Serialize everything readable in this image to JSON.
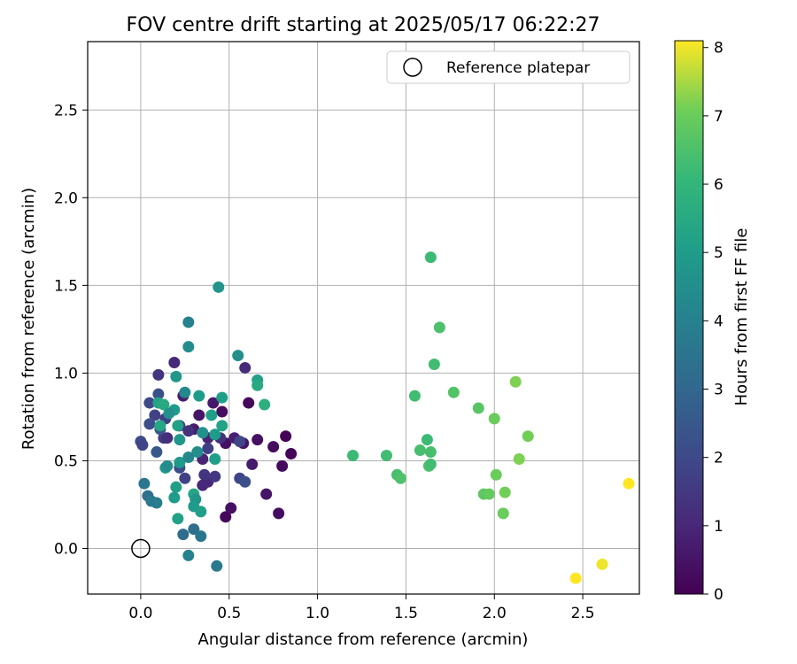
{
  "chart_data": {
    "type": "scatter",
    "title": "FOV centre drift starting at 2025/05/17 06:22:27",
    "xlabel": "Angular distance from reference (arcmin)",
    "ylabel": "Rotation from reference (arcmin)",
    "xlim": [
      -0.3,
      2.82
    ],
    "ylim": [
      -0.26,
      2.89
    ],
    "xticks": [
      0.0,
      0.5,
      1.0,
      1.5,
      2.0,
      2.5
    ],
    "xtick_labels": [
      "0.0",
      "0.5",
      "1.0",
      "1.5",
      "2.0",
      "2.5"
    ],
    "yticks": [
      0.0,
      0.5,
      1.0,
      1.5,
      2.0,
      2.5
    ],
    "ytick_labels": [
      "0.0",
      "0.5",
      "1.0",
      "1.5",
      "2.0",
      "2.5"
    ],
    "grid": true,
    "legend": {
      "position": "top-right",
      "entries": [
        {
          "label": "Reference platepar",
          "marker": "open-circle"
        }
      ]
    },
    "reference": {
      "x": 0.0,
      "y": 0.0
    },
    "colorbar": {
      "label": "Hours from first FF file",
      "colormap": "viridis",
      "range": [
        0,
        8.1
      ],
      "ticks": [
        0,
        1,
        2,
        3,
        4,
        5,
        6,
        7,
        8
      ],
      "tick_labels": [
        "0",
        "1",
        "2",
        "3",
        "4",
        "5",
        "6",
        "7",
        "8"
      ]
    },
    "series": [
      {
        "points": [
          {
            "x": 0.19,
            "y": 1.06,
            "h": 1.0
          },
          {
            "x": 0.24,
            "y": 0.87,
            "h": 0.8
          },
          {
            "x": 0.41,
            "y": 0.83,
            "h": 0.6
          },
          {
            "x": 0.46,
            "y": 0.78,
            "h": 0.3
          },
          {
            "x": 0.33,
            "y": 0.76,
            "h": 0.5
          },
          {
            "x": 0.3,
            "y": 0.68,
            "h": 0.7
          },
          {
            "x": 0.38,
            "y": 0.63,
            "h": 0.9
          },
          {
            "x": 0.48,
            "y": 0.6,
            "h": 0.4
          },
          {
            "x": 0.53,
            "y": 0.63,
            "h": 0.8
          },
          {
            "x": 0.58,
            "y": 0.6,
            "h": 0.5
          },
          {
            "x": 0.61,
            "y": 0.83,
            "h": 0.2
          },
          {
            "x": 0.66,
            "y": 0.62,
            "h": 0.4
          },
          {
            "x": 0.75,
            "y": 0.58,
            "h": 0.3
          },
          {
            "x": 0.8,
            "y": 0.47,
            "h": 0.2
          },
          {
            "x": 0.82,
            "y": 0.64,
            "h": 0.1
          },
          {
            "x": 0.85,
            "y": 0.54,
            "h": 0.1
          },
          {
            "x": 0.63,
            "y": 0.48,
            "h": 0.7
          },
          {
            "x": 0.71,
            "y": 0.31,
            "h": 0.5
          },
          {
            "x": 0.78,
            "y": 0.2,
            "h": 0.3
          },
          {
            "x": 0.51,
            "y": 0.23,
            "h": 0.4
          },
          {
            "x": 0.48,
            "y": 0.18,
            "h": 0.2
          },
          {
            "x": 0.35,
            "y": 0.51,
            "h": 0.9
          },
          {
            "x": 0.38,
            "y": 0.38,
            "h": 1.0
          },
          {
            "x": 0.59,
            "y": 1.03,
            "h": 1.1
          },
          {
            "x": 0.1,
            "y": 0.99,
            "h": 1.4
          },
          {
            "x": 0.1,
            "y": 0.88,
            "h": 2.3
          },
          {
            "x": 0.05,
            "y": 0.83,
            "h": 2.0
          },
          {
            "x": 0.08,
            "y": 0.76,
            "h": 1.8
          },
          {
            "x": 0.05,
            "y": 0.71,
            "h": 2.2
          },
          {
            "x": 0.0,
            "y": 0.61,
            "h": 2.1
          },
          {
            "x": 0.01,
            "y": 0.59,
            "h": 1.9
          },
          {
            "x": 0.09,
            "y": 0.55,
            "h": 2.5
          },
          {
            "x": 0.13,
            "y": 0.63,
            "h": 1.6
          },
          {
            "x": 0.15,
            "y": 0.63,
            "h": 1.2
          },
          {
            "x": 0.14,
            "y": 0.74,
            "h": 1.7
          },
          {
            "x": 0.11,
            "y": 0.68,
            "h": 2.4
          },
          {
            "x": 0.22,
            "y": 0.7,
            "h": 1.5
          },
          {
            "x": 0.27,
            "y": 0.67,
            "h": 1.3
          },
          {
            "x": 0.22,
            "y": 0.46,
            "h": 2.1
          },
          {
            "x": 0.25,
            "y": 0.4,
            "h": 1.8
          },
          {
            "x": 0.36,
            "y": 0.42,
            "h": 1.4
          },
          {
            "x": 0.42,
            "y": 0.41,
            "h": 1.5
          },
          {
            "x": 0.56,
            "y": 0.4,
            "h": 1.9
          },
          {
            "x": 0.59,
            "y": 0.38,
            "h": 2.2
          },
          {
            "x": 0.56,
            "y": 0.61,
            "h": 1.9
          },
          {
            "x": 0.38,
            "y": 0.57,
            "h": 1.7
          },
          {
            "x": 0.45,
            "y": 0.63,
            "h": 1.3
          },
          {
            "x": 0.35,
            "y": 0.36,
            "h": 1.0
          },
          {
            "x": 0.02,
            "y": 0.37,
            "h": 3.6
          },
          {
            "x": 0.04,
            "y": 0.3,
            "h": 3.3
          },
          {
            "x": 0.06,
            "y": 0.27,
            "h": 3.7
          },
          {
            "x": 0.09,
            "y": 0.26,
            "h": 3.8
          },
          {
            "x": 0.24,
            "y": 0.08,
            "h": 3.2
          },
          {
            "x": 0.3,
            "y": 0.11,
            "h": 3.4
          },
          {
            "x": 0.34,
            "y": 0.07,
            "h": 3.6
          },
          {
            "x": 0.27,
            "y": -0.04,
            "h": 4.0
          },
          {
            "x": 0.43,
            "y": -0.1,
            "h": 3.7
          },
          {
            "x": 0.27,
            "y": 1.29,
            "h": 4.0
          },
          {
            "x": 0.27,
            "y": 1.15,
            "h": 4.4
          },
          {
            "x": 0.44,
            "y": 1.49,
            "h": 4.7
          },
          {
            "x": 0.55,
            "y": 1.1,
            "h": 4.5
          },
          {
            "x": 0.2,
            "y": 0.98,
            "h": 4.8
          },
          {
            "x": 0.25,
            "y": 0.89,
            "h": 4.3
          },
          {
            "x": 0.33,
            "y": 0.87,
            "h": 5.0
          },
          {
            "x": 0.46,
            "y": 0.86,
            "h": 5.1
          },
          {
            "x": 0.66,
            "y": 0.96,
            "h": 5.2
          },
          {
            "x": 0.66,
            "y": 0.93,
            "h": 5.5
          },
          {
            "x": 0.7,
            "y": 0.82,
            "h": 5.7
          },
          {
            "x": 0.1,
            "y": 0.83,
            "h": 5.3
          },
          {
            "x": 0.13,
            "y": 0.82,
            "h": 5.5
          },
          {
            "x": 0.19,
            "y": 0.79,
            "h": 4.9
          },
          {
            "x": 0.16,
            "y": 0.77,
            "h": 4.6
          },
          {
            "x": 0.11,
            "y": 0.7,
            "h": 5.4
          },
          {
            "x": 0.21,
            "y": 0.7,
            "h": 5.2
          },
          {
            "x": 0.4,
            "y": 0.76,
            "h": 5.1
          },
          {
            "x": 0.46,
            "y": 0.7,
            "h": 5.3
          },
          {
            "x": 0.35,
            "y": 0.66,
            "h": 4.6
          },
          {
            "x": 0.42,
            "y": 0.65,
            "h": 5.0
          },
          {
            "x": 0.22,
            "y": 0.62,
            "h": 4.8
          },
          {
            "x": 0.32,
            "y": 0.55,
            "h": 4.5
          },
          {
            "x": 0.42,
            "y": 0.51,
            "h": 5.1
          },
          {
            "x": 0.22,
            "y": 0.49,
            "h": 4.9
          },
          {
            "x": 0.27,
            "y": 0.52,
            "h": 4.2
          },
          {
            "x": 0.14,
            "y": 0.46,
            "h": 5.0
          },
          {
            "x": 0.15,
            "y": 0.47,
            "h": 4.4
          },
          {
            "x": 0.2,
            "y": 0.35,
            "h": 5.1
          },
          {
            "x": 0.3,
            "y": 0.31,
            "h": 5.4
          },
          {
            "x": 0.19,
            "y": 0.29,
            "h": 5.0
          },
          {
            "x": 0.31,
            "y": 0.28,
            "h": 4.7
          },
          {
            "x": 0.3,
            "y": 0.24,
            "h": 4.9
          },
          {
            "x": 0.34,
            "y": 0.21,
            "h": 5.1
          },
          {
            "x": 0.21,
            "y": 0.17,
            "h": 5.2
          },
          {
            "x": 1.2,
            "y": 0.53,
            "h": 6.2
          },
          {
            "x": 1.39,
            "y": 0.53,
            "h": 6.3
          },
          {
            "x": 1.45,
            "y": 0.42,
            "h": 6.4
          },
          {
            "x": 1.47,
            "y": 0.4,
            "h": 6.5
          },
          {
            "x": 1.55,
            "y": 0.87,
            "h": 6.3
          },
          {
            "x": 1.58,
            "y": 0.56,
            "h": 6.4
          },
          {
            "x": 1.62,
            "y": 0.62,
            "h": 6.2
          },
          {
            "x": 1.63,
            "y": 0.47,
            "h": 6.5
          },
          {
            "x": 1.64,
            "y": 0.48,
            "h": 6.3
          },
          {
            "x": 1.64,
            "y": 0.55,
            "h": 6.4
          },
          {
            "x": 1.64,
            "y": 1.66,
            "h": 6.2
          },
          {
            "x": 1.66,
            "y": 1.05,
            "h": 6.3
          },
          {
            "x": 1.69,
            "y": 1.26,
            "h": 6.5
          },
          {
            "x": 1.77,
            "y": 0.89,
            "h": 6.6
          },
          {
            "x": 1.91,
            "y": 0.8,
            "h": 6.7
          },
          {
            "x": 1.94,
            "y": 0.31,
            "h": 6.8
          },
          {
            "x": 1.97,
            "y": 0.31,
            "h": 6.9
          },
          {
            "x": 2.01,
            "y": 0.42,
            "h": 7.0
          },
          {
            "x": 2.0,
            "y": 0.74,
            "h": 7.0
          },
          {
            "x": 2.05,
            "y": 0.2,
            "h": 7.0
          },
          {
            "x": 2.06,
            "y": 0.32,
            "h": 7.1
          },
          {
            "x": 2.12,
            "y": 0.95,
            "h": 7.2
          },
          {
            "x": 2.14,
            "y": 0.51,
            "h": 7.2
          },
          {
            "x": 2.19,
            "y": 0.64,
            "h": 7.1
          },
          {
            "x": 2.46,
            "y": -0.17,
            "h": 8.1
          },
          {
            "x": 2.61,
            "y": -0.09,
            "h": 8.0
          },
          {
            "x": 2.76,
            "y": 0.37,
            "h": 8.1
          }
        ]
      }
    ]
  }
}
